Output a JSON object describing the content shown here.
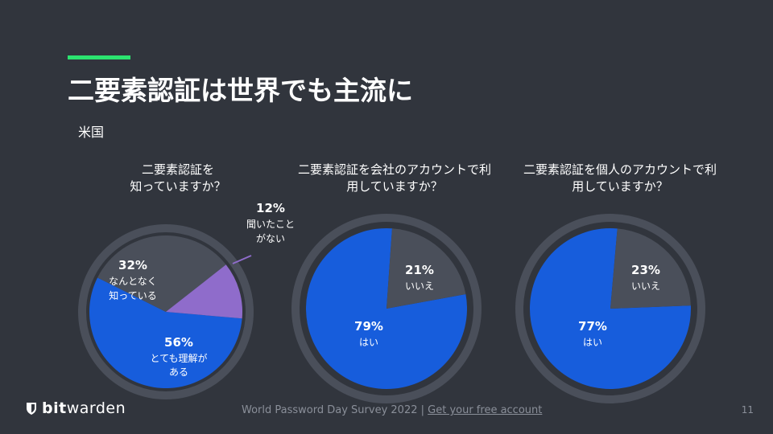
{
  "slide": {
    "title": "二要素認証は世界でも主流に",
    "subtitle": "米国",
    "page_number": "11"
  },
  "colors": {
    "background": "#31353d",
    "accent": "#2be36f",
    "ring": "#4a4f5a",
    "blue": "#175ddc",
    "gray": "#4a4f5a",
    "purple": "#8f6ccb"
  },
  "footer": {
    "brand_bold": "bit",
    "brand_rest": "warden",
    "survey": "World Password Day Survey 2022 |",
    "link": "Get your free account"
  },
  "chart_data": [
    {
      "type": "pie",
      "title": "二要素認証を\n知っていますか？",
      "slices": [
        {
          "value": 56,
          "pct": "56%",
          "label1": "とても理解が",
          "label2": "ある",
          "color": "#175ddc"
        },
        {
          "value": 32,
          "pct": "32%",
          "label1": "なんとなく",
          "label2": "知っている",
          "color": "#4a4f5a"
        },
        {
          "value": 12,
          "pct": "12%",
          "label1": "聞いたこと",
          "label2": "がない",
          "color": "#8f6ccb"
        }
      ]
    },
    {
      "type": "pie",
      "title": "二要素認証を会社のアカウントで利\n用していますか？",
      "slices": [
        {
          "value": 79,
          "pct": "79%",
          "label1": "はい",
          "color": "#175ddc"
        },
        {
          "value": 21,
          "pct": "21%",
          "label1": "いいえ",
          "color": "#4a4f5a"
        }
      ]
    },
    {
      "type": "pie",
      "title": "二要素認証を個人のアカウントで利\n用していますか？",
      "slices": [
        {
          "value": 77,
          "pct": "77%",
          "label1": "はい",
          "color": "#175ddc"
        },
        {
          "value": 23,
          "pct": "23%",
          "label1": "いいえ",
          "color": "#4a4f5a"
        }
      ]
    }
  ]
}
